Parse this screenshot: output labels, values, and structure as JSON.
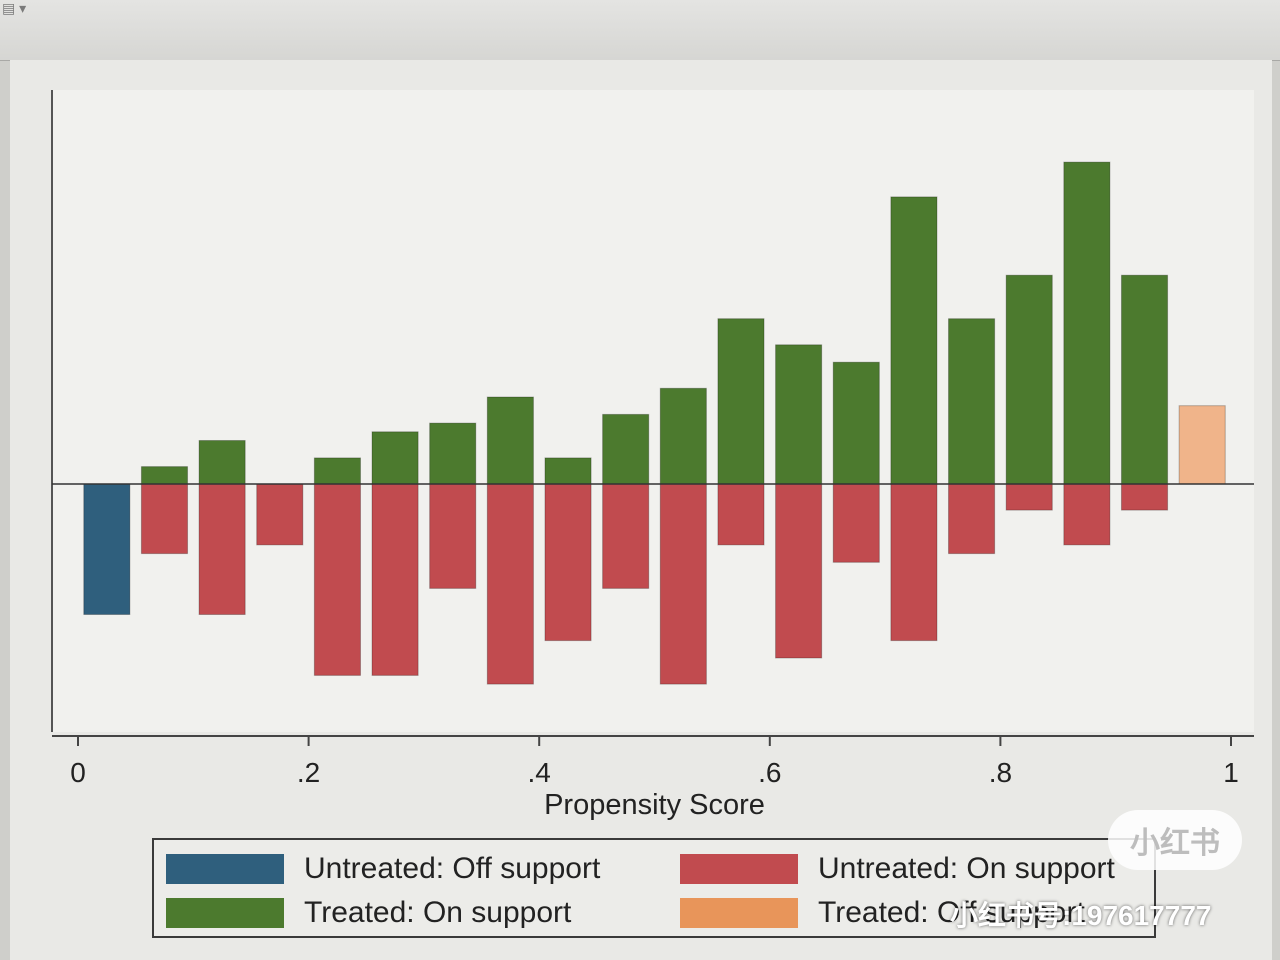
{
  "chart_data": {
    "type": "bar",
    "title": "",
    "xlabel": "Propensity Score",
    "ylabel": "",
    "xlim": [
      0,
      1
    ],
    "x_ticks": [
      "0",
      ".2",
      ".4",
      ".6",
      ".8",
      "1"
    ],
    "x_tick_values": [
      0,
      0.2,
      0.4,
      0.6,
      0.8,
      1
    ],
    "bin_width": 0.05,
    "bin_start": [
      0.0,
      0.05,
      0.1,
      0.15,
      0.2,
      0.25,
      0.3,
      0.35,
      0.4,
      0.45,
      0.5,
      0.55,
      0.6,
      0.65,
      0.7,
      0.75,
      0.8,
      0.85,
      0.9,
      0.95
    ],
    "grid": false,
    "legend_position": "bottom",
    "colors": {
      "untreated_off": "#2f5f7d",
      "untreated_on": "#c14b4f",
      "treated_on": "#4c7a2e",
      "treated_off": "#f0b48a"
    },
    "series": [
      {
        "name": "Untreated: Off support",
        "color": "#2f5f7d",
        "direction": "down",
        "values": [
          15,
          0,
          0,
          0,
          0,
          0,
          0,
          0,
          0,
          0,
          0,
          0,
          0,
          0,
          0,
          0,
          0,
          0,
          0,
          0
        ]
      },
      {
        "name": "Untreated: On support",
        "color": "#c14b4f",
        "direction": "down",
        "values": [
          0,
          8,
          15,
          7,
          22,
          22,
          12,
          23,
          18,
          12,
          23,
          7,
          20,
          9,
          18,
          8,
          3,
          7,
          3,
          0
        ]
      },
      {
        "name": "Treated: On support",
        "color": "#4c7a2e",
        "direction": "up",
        "values": [
          0,
          2,
          5,
          0,
          3,
          6,
          7,
          10,
          3,
          8,
          11,
          19,
          16,
          14,
          33,
          19,
          24,
          37,
          24,
          0
        ]
      },
      {
        "name": "Treated: Off support",
        "color": "#f0b48a",
        "direction": "up",
        "values": [
          0,
          0,
          0,
          0,
          0,
          0,
          0,
          0,
          0,
          0,
          0,
          0,
          0,
          0,
          0,
          0,
          0,
          0,
          0,
          9
        ]
      }
    ]
  },
  "watermark": {
    "badge": "小红书",
    "id_text": "小红书号:197617777"
  },
  "toolbar_glyph": "▤ ▾"
}
